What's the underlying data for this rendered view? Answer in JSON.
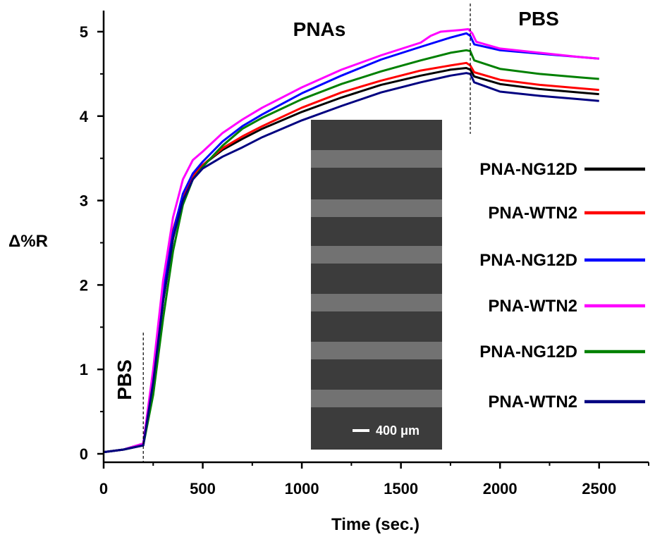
{
  "chart_data": {
    "type": "line",
    "xlabel": "Time (sec.)",
    "ylabel": "Δ%R",
    "xlim": [
      0,
      2750
    ],
    "ylim": [
      -0.1,
      5.25
    ],
    "xticks": [
      0,
      500,
      1000,
      1500,
      2000,
      2500
    ],
    "xtick_labels": [
      "0",
      "500",
      "1000",
      "1500",
      "2000",
      "2500"
    ],
    "yticks": [
      0,
      1,
      2,
      3,
      4,
      5
    ],
    "ytick_labels": [
      "0",
      "1",
      "2",
      "3",
      "4",
      "5"
    ],
    "grid": false,
    "legend_position": "right",
    "vlines": [
      200,
      1850
    ],
    "annotations": [
      {
        "text": "PNAs",
        "x": 1050,
        "y": 5.0
      },
      {
        "text": "PBS",
        "x": 2050,
        "y": 5.1
      },
      {
        "text": "PBS",
        "x": 100,
        "y": 0.9,
        "rotated": true
      }
    ],
    "inset": {
      "scale_bar_label": "400 μm"
    },
    "series": [
      {
        "name": "PNA-NG12D",
        "color": "#000000",
        "points": [
          [
            0,
            0.02
          ],
          [
            100,
            0.05
          ],
          [
            200,
            0.1
          ],
          [
            250,
            0.8
          ],
          [
            300,
            1.8
          ],
          [
            350,
            2.55
          ],
          [
            400,
            3.05
          ],
          [
            450,
            3.3
          ],
          [
            500,
            3.42
          ],
          [
            600,
            3.6
          ],
          [
            700,
            3.73
          ],
          [
            800,
            3.85
          ],
          [
            1000,
            4.05
          ],
          [
            1200,
            4.22
          ],
          [
            1400,
            4.37
          ],
          [
            1600,
            4.48
          ],
          [
            1750,
            4.55
          ],
          [
            1830,
            4.57
          ],
          [
            1850,
            4.55
          ],
          [
            1870,
            4.47
          ],
          [
            2000,
            4.38
          ],
          [
            2200,
            4.32
          ],
          [
            2400,
            4.28
          ],
          [
            2500,
            4.26
          ]
        ]
      },
      {
        "name": "PNA-WTN2",
        "color": "#ff0000",
        "points": [
          [
            0,
            0.02
          ],
          [
            100,
            0.05
          ],
          [
            200,
            0.12
          ],
          [
            250,
            0.95
          ],
          [
            300,
            1.95
          ],
          [
            350,
            2.65
          ],
          [
            400,
            3.05
          ],
          [
            450,
            3.28
          ],
          [
            500,
            3.42
          ],
          [
            600,
            3.62
          ],
          [
            700,
            3.76
          ],
          [
            800,
            3.88
          ],
          [
            1000,
            4.1
          ],
          [
            1200,
            4.28
          ],
          [
            1400,
            4.42
          ],
          [
            1600,
            4.54
          ],
          [
            1750,
            4.6
          ],
          [
            1830,
            4.63
          ],
          [
            1850,
            4.6
          ],
          [
            1870,
            4.52
          ],
          [
            2000,
            4.43
          ],
          [
            2200,
            4.37
          ],
          [
            2400,
            4.33
          ],
          [
            2500,
            4.31
          ]
        ]
      },
      {
        "name": "PNA-NG12D",
        "color": "#0000ff",
        "points": [
          [
            0,
            0.02
          ],
          [
            100,
            0.05
          ],
          [
            200,
            0.12
          ],
          [
            250,
            0.9
          ],
          [
            300,
            1.9
          ],
          [
            350,
            2.62
          ],
          [
            400,
            3.08
          ],
          [
            450,
            3.32
          ],
          [
            500,
            3.46
          ],
          [
            600,
            3.7
          ],
          [
            700,
            3.88
          ],
          [
            800,
            4.02
          ],
          [
            1000,
            4.27
          ],
          [
            1200,
            4.48
          ],
          [
            1400,
            4.67
          ],
          [
            1600,
            4.82
          ],
          [
            1750,
            4.93
          ],
          [
            1830,
            4.98
          ],
          [
            1850,
            4.95
          ],
          [
            1870,
            4.85
          ],
          [
            2000,
            4.78
          ],
          [
            2200,
            4.74
          ],
          [
            2400,
            4.7
          ],
          [
            2500,
            4.68
          ]
        ]
      },
      {
        "name": "PNA-WTN2",
        "color": "#ff00ff",
        "points": [
          [
            0,
            0.02
          ],
          [
            100,
            0.05
          ],
          [
            200,
            0.12
          ],
          [
            250,
            1.0
          ],
          [
            300,
            2.05
          ],
          [
            350,
            2.8
          ],
          [
            400,
            3.25
          ],
          [
            450,
            3.48
          ],
          [
            500,
            3.58
          ],
          [
            600,
            3.8
          ],
          [
            700,
            3.96
          ],
          [
            800,
            4.1
          ],
          [
            1000,
            4.34
          ],
          [
            1200,
            4.55
          ],
          [
            1400,
            4.72
          ],
          [
            1600,
            4.87
          ],
          [
            1650,
            4.95
          ],
          [
            1700,
            5.0
          ],
          [
            1800,
            5.02
          ],
          [
            1840,
            5.03
          ],
          [
            1860,
            4.98
          ],
          [
            1880,
            4.88
          ],
          [
            2000,
            4.8
          ],
          [
            2200,
            4.75
          ],
          [
            2400,
            4.7
          ],
          [
            2500,
            4.68
          ]
        ]
      },
      {
        "name": "PNA-NG12D",
        "color": "#008000",
        "points": [
          [
            0,
            0.02
          ],
          [
            100,
            0.05
          ],
          [
            200,
            0.1
          ],
          [
            250,
            0.7
          ],
          [
            300,
            1.6
          ],
          [
            350,
            2.4
          ],
          [
            400,
            2.95
          ],
          [
            450,
            3.25
          ],
          [
            500,
            3.4
          ],
          [
            600,
            3.65
          ],
          [
            700,
            3.85
          ],
          [
            800,
            3.98
          ],
          [
            1000,
            4.2
          ],
          [
            1200,
            4.38
          ],
          [
            1400,
            4.53
          ],
          [
            1600,
            4.66
          ],
          [
            1750,
            4.75
          ],
          [
            1830,
            4.78
          ],
          [
            1850,
            4.77
          ],
          [
            1870,
            4.66
          ],
          [
            2000,
            4.56
          ],
          [
            2200,
            4.5
          ],
          [
            2400,
            4.46
          ],
          [
            2500,
            4.44
          ]
        ]
      },
      {
        "name": "PNA-WTN2",
        "color": "#000080",
        "points": [
          [
            0,
            0.02
          ],
          [
            100,
            0.05
          ],
          [
            200,
            0.1
          ],
          [
            250,
            0.85
          ],
          [
            300,
            1.8
          ],
          [
            350,
            2.55
          ],
          [
            400,
            3.0
          ],
          [
            450,
            3.25
          ],
          [
            500,
            3.38
          ],
          [
            600,
            3.52
          ],
          [
            700,
            3.63
          ],
          [
            800,
            3.75
          ],
          [
            1000,
            3.95
          ],
          [
            1200,
            4.12
          ],
          [
            1400,
            4.28
          ],
          [
            1600,
            4.4
          ],
          [
            1750,
            4.48
          ],
          [
            1830,
            4.51
          ],
          [
            1850,
            4.5
          ],
          [
            1870,
            4.4
          ],
          [
            2000,
            4.29
          ],
          [
            2200,
            4.24
          ],
          [
            2400,
            4.2
          ],
          [
            2500,
            4.18
          ]
        ]
      }
    ]
  }
}
